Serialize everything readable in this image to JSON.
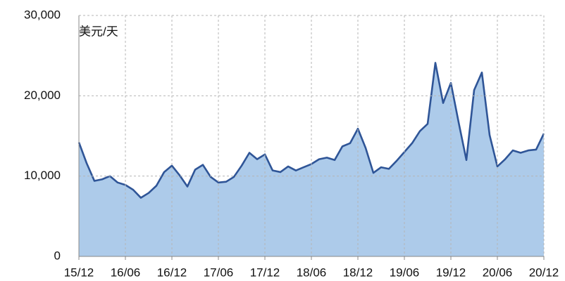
{
  "chart_data": {
    "type": "area",
    "y_label": "美元/天",
    "categories": [
      "15/12",
      null,
      null,
      null,
      null,
      null,
      "16/06",
      null,
      null,
      null,
      null,
      null,
      "16/12",
      null,
      null,
      null,
      null,
      null,
      "17/06",
      null,
      null,
      null,
      null,
      null,
      "17/12",
      null,
      null,
      null,
      null,
      null,
      "18/06",
      null,
      null,
      null,
      null,
      null,
      "18/12",
      null,
      null,
      null,
      null,
      null,
      "19/06",
      null,
      null,
      null,
      null,
      null,
      "19/12",
      null,
      null,
      null,
      null,
      null,
      "20/06",
      null,
      null,
      null,
      null,
      null,
      "20/12"
    ],
    "values": [
      14200,
      11600,
      9400,
      9600,
      10000,
      9200,
      8900,
      8300,
      7300,
      7900,
      8800,
      10500,
      11300,
      10100,
      8700,
      10800,
      11400,
      9900,
      9200,
      9300,
      9900,
      11300,
      12900,
      12100,
      12700,
      10700,
      10500,
      11200,
      10700,
      11100,
      11500,
      12100,
      12300,
      12000,
      13700,
      14100,
      15900,
      13500,
      10400,
      11100,
      10900,
      11900,
      13000,
      14100,
      15600,
      16500,
      24100,
      19100,
      21600,
      16700,
      12000,
      20700,
      22900,
      15100,
      11200,
      12100,
      13200,
      12900,
      13200,
      13300,
      15300
    ],
    "color": "#2f5597",
    "fill": "#adcbea",
    "ylim": [
      0,
      30000
    ],
    "yticks": [
      0,
      {
        "value": 10000,
        "label": "10,000"
      },
      {
        "value": 20000,
        "label": "20,000"
      },
      {
        "value": 30000,
        "label": "30,000"
      }
    ],
    "grid": true
  }
}
